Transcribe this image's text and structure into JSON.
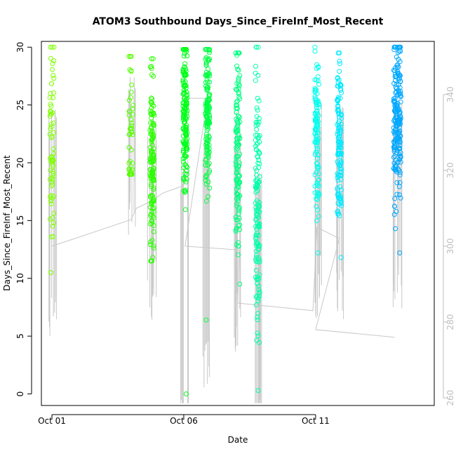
{
  "chart_data": {
    "type": "scatter",
    "title": "ATOM3 Southbound Days_Since_FireInf_Most_Recent",
    "xlabel": "Date",
    "ylabel": "Days_Since_FireInf_Most_Recent",
    "x_ticks": [
      "Oct 01",
      "Oct 06",
      "Oct 11"
    ],
    "x_tick_days": [
      1,
      6,
      11
    ],
    "xlim": [
      0.6,
      15.5
    ],
    "ylim": [
      -1,
      30.5
    ],
    "y_ticks": [
      0,
      5,
      10,
      15,
      20,
      25,
      30
    ],
    "right_axis": {
      "ticks": [
        260,
        280,
        300,
        320,
        340
      ],
      "ylim": [
        258,
        354
      ],
      "color": "#bdbdbd"
    },
    "grid": false,
    "clusters": [
      {
        "day": 1.0,
        "ymin": 10.5,
        "ymax": 30.0,
        "center": 21,
        "spread": 5,
        "color": "#80ff00",
        "n": 70
      },
      {
        "day": 4.0,
        "ymin": 19.0,
        "ymax": 29.2,
        "center": 23,
        "spread": 3,
        "color": "#55ff00",
        "n": 45
      },
      {
        "day": 4.8,
        "ymin": 11.5,
        "ymax": 29.0,
        "center": 20,
        "spread": 4,
        "color": "#2bff00",
        "n": 140
      },
      {
        "day": 6.05,
        "ymin": 0.0,
        "ymax": 29.8,
        "center": 24,
        "spread": 3.5,
        "color": "#00ff19",
        "n": 160
      },
      {
        "day": 6.9,
        "ymin": 6.4,
        "ymax": 29.8,
        "center": 24,
        "spread": 3.5,
        "color": "#00ff40",
        "n": 150
      },
      {
        "day": 8.05,
        "ymin": 9.5,
        "ymax": 29.5,
        "center": 21,
        "spread": 4.5,
        "color": "#00ff80",
        "n": 130
      },
      {
        "day": 8.8,
        "ymin": 0.3,
        "ymax": 30.0,
        "center": 17,
        "spread": 5,
        "color": "#00ffaa",
        "n": 140
      },
      {
        "day": 11.05,
        "ymin": 12.2,
        "ymax": 30.0,
        "center": 22,
        "spread": 3.5,
        "color": "#00ffee",
        "n": 110
      },
      {
        "day": 11.9,
        "ymin": 11.8,
        "ymax": 29.5,
        "center": 22,
        "spread": 3.5,
        "color": "#00eaff",
        "n": 130
      },
      {
        "day": 14.1,
        "ymin": 12.2,
        "ymax": 30.0,
        "center": 24,
        "spread": 3.5,
        "color": "#00a8ff",
        "n": 200
      }
    ],
    "gray_line": [
      {
        "x": 1.0,
        "y2": 300
      },
      {
        "x": 4.0,
        "y2": 307
      },
      {
        "x": 4.2,
        "y2": 310
      },
      {
        "x": 4.8,
        "y2": 312
      },
      {
        "x": 5.2,
        "y2": 314
      },
      {
        "x": 6.0,
        "y2": 316
      },
      {
        "x": 6.1,
        "y2": 339
      },
      {
        "x": 6.9,
        "y2": 339
      },
      {
        "x": 6.05,
        "y2": 300
      },
      {
        "x": 8.1,
        "y2": 299
      },
      {
        "x": 8.05,
        "y2": 285
      },
      {
        "x": 10.9,
        "y2": 283
      },
      {
        "x": 11.05,
        "y2": 305
      },
      {
        "x": 11.9,
        "y2": 302
      },
      {
        "x": 11.0,
        "y2": 278
      },
      {
        "x": 14.0,
        "y2": 276
      }
    ]
  }
}
